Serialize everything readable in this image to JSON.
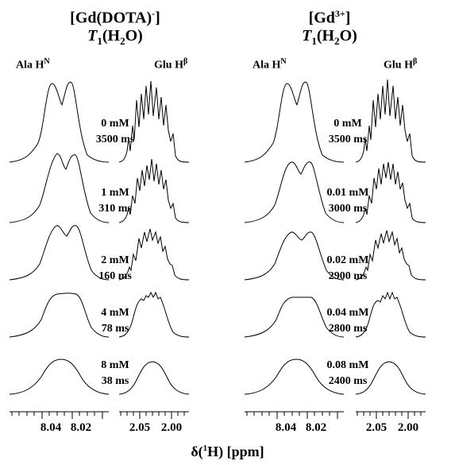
{
  "panels": [
    {
      "title": "[Gd(DOTA)",
      "title_sup": "-",
      "title_suffix": "]",
      "subtitle_main": "T",
      "subtitle_sub": "1",
      "subtitle_tail": "(H",
      "subtitle_h2o_sub": "2",
      "subtitle_end": "O)",
      "peak_left": "Ala H",
      "peak_left_sup": "N",
      "peak_right": "Glu H",
      "peak_right_sup": "β",
      "conditions": [
        {
          "conc": "0 mM",
          "t1": "3500 ms"
        },
        {
          "conc": "1 mM",
          "t1": "310 ms"
        },
        {
          "conc": "2 mM",
          "t1": "160 ms"
        },
        {
          "conc": "4 mM",
          "t1": "78 ms"
        },
        {
          "conc": "8 mM",
          "t1": "38 ms"
        }
      ],
      "ticks_left": [
        "8.04",
        "8.02"
      ],
      "ticks_right": [
        "2.05",
        "2.00"
      ]
    },
    {
      "title": "[Gd",
      "title_sup": "3+",
      "title_suffix": "]",
      "subtitle_main": "T",
      "subtitle_sub": "1",
      "subtitle_tail": "(H",
      "subtitle_h2o_sub": "2",
      "subtitle_end": "O)",
      "peak_left": "Ala H",
      "peak_left_sup": "N",
      "peak_right": "Glu H",
      "peak_right_sup": "β",
      "conditions": [
        {
          "conc": "0 mM",
          "t1": "3500 ms"
        },
        {
          "conc": "0.01 mM",
          "t1": "3000 ms"
        },
        {
          "conc": "0.02 mM",
          "t1": "2900 ms"
        },
        {
          "conc": "0.04 mM",
          "t1": "2800 ms"
        },
        {
          "conc": "0.08 mM",
          "t1": "2400 ms"
        }
      ],
      "ticks_left": [
        "8.04",
        "8.02"
      ],
      "ticks_right": [
        "2.05",
        "2.00"
      ]
    }
  ],
  "xaxis_title": "δ(",
  "xaxis_sup": "1",
  "xaxis_tail": "H) [ppm]"
}
